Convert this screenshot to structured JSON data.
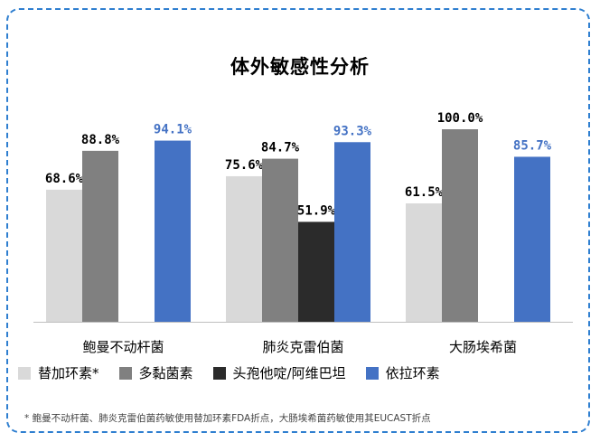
{
  "chart_data": {
    "type": "bar",
    "title": "体外敏感性分析",
    "categories": [
      "鲍曼不动杆菌",
      "肺炎克雷伯菌",
      "大肠埃希菌"
    ],
    "series": [
      {
        "name": "替加环素*",
        "color": "#d9d9d9",
        "values": [
          68.6,
          75.6,
          61.5
        ],
        "labels": [
          "68.6%",
          "75.6%",
          "61.5%"
        ]
      },
      {
        "name": "多黏菌素",
        "color": "#808080",
        "values": [
          88.8,
          84.7,
          100.0
        ],
        "labels": [
          "88.8%",
          "84.7%",
          "100.0%"
        ]
      },
      {
        "name": "头孢他啶/阿维巴坦",
        "color": "#2b2b2b",
        "values": [
          null,
          51.9,
          null
        ],
        "labels": [
          "",
          "51.9%",
          ""
        ]
      },
      {
        "name": "依拉环素",
        "color": "#4472c4",
        "values": [
          94.1,
          93.3,
          85.7
        ],
        "labels": [
          "94.1%",
          "93.3%",
          "85.7%"
        ]
      }
    ],
    "ylim": [
      0,
      100
    ],
    "legend_position": "bottom",
    "grid": false,
    "footnote": "* 鲍曼不动杆菌、肺炎克雷伯菌药敏使用替加环素FDA折点，大肠埃希菌药敏使用其EUCAST折点"
  }
}
